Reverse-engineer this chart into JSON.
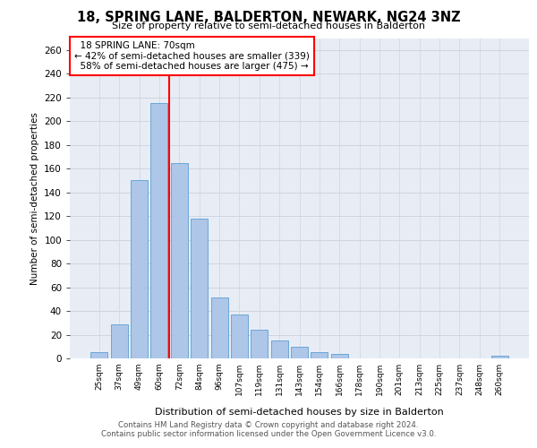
{
  "title": "18, SPRING LANE, BALDERTON, NEWARK, NG24 3NZ",
  "subtitle": "Size of property relative to semi-detached houses in Balderton",
  "xlabel": "Distribution of semi-detached houses by size in Balderton",
  "ylabel": "Number of semi-detached properties",
  "categories": [
    "25sqm",
    "37sqm",
    "49sqm",
    "60sqm",
    "72sqm",
    "84sqm",
    "96sqm",
    "107sqm",
    "119sqm",
    "131sqm",
    "143sqm",
    "154sqm",
    "166sqm",
    "178sqm",
    "190sqm",
    "201sqm",
    "213sqm",
    "225sqm",
    "237sqm",
    "248sqm",
    "260sqm"
  ],
  "values": [
    5,
    29,
    150,
    215,
    165,
    118,
    51,
    37,
    24,
    15,
    10,
    5,
    4,
    0,
    0,
    0,
    0,
    0,
    0,
    0,
    2
  ],
  "bar_color": "#aec6e8",
  "bar_edge_color": "#5a9fd4",
  "property_label": "18 SPRING LANE: 70sqm",
  "smaller_pct": 42,
  "smaller_count": 339,
  "larger_pct": 58,
  "larger_count": 475,
  "vline_x_index": 3.5,
  "grid_color": "#cdd5e0",
  "bg_color": "#e8edf5",
  "ylim": [
    0,
    270
  ],
  "yticks": [
    0,
    20,
    40,
    60,
    80,
    100,
    120,
    140,
    160,
    180,
    200,
    220,
    240,
    260
  ],
  "footer_line1": "Contains HM Land Registry data © Crown copyright and database right 2024.",
  "footer_line2": "Contains public sector information licensed under the Open Government Licence v3.0."
}
